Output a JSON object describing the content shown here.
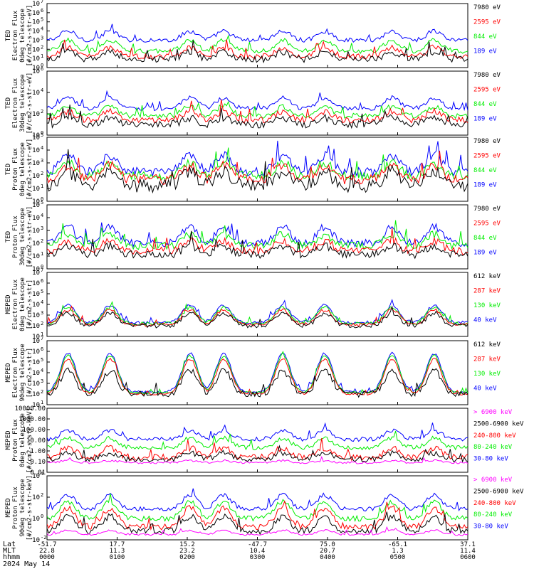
{
  "colors": {
    "black": "#000000",
    "red": "#ff0000",
    "green": "#00ee00",
    "blue": "#0000ff",
    "magenta": "#ff00ff"
  },
  "chart_data": [
    {
      "type": "line",
      "panel_id": "ted-electron-0deg",
      "ylabel": [
        "TED",
        "Electron Flux",
        "0deg telescope",
        "[#/cm2-s-str-eV]"
      ],
      "scale": "log",
      "ylim": [
        1,
        10000000
      ],
      "ytick_exponents": [
        0,
        1,
        2,
        3,
        4,
        5,
        6,
        7
      ],
      "legend": [
        {
          "label": "7980 eV",
          "color": "#000000"
        },
        {
          "label": "2595 eV",
          "color": "#ff0000"
        },
        {
          "label": "844 eV",
          "color": "#00ee00"
        },
        {
          "label": "189 eV",
          "color": "#0000ff"
        }
      ],
      "series": [
        {
          "color": "#0000ff",
          "base": 3.0,
          "amp": 1.0,
          "noise": 0.25
        },
        {
          "color": "#00ee00",
          "base": 1.8,
          "amp": 1.2,
          "noise": 0.25
        },
        {
          "color": "#ff0000",
          "base": 1.2,
          "amp": 1.0,
          "noise": 0.3
        },
        {
          "color": "#000000",
          "base": 0.9,
          "amp": 0.8,
          "noise": 0.35
        }
      ]
    },
    {
      "type": "line",
      "panel_id": "ted-electron-30deg",
      "ylabel": [
        "TED",
        "Electron Flux",
        "30deg telescope",
        "[#/cm2-s-str-eV]"
      ],
      "scale": "log",
      "ylim": [
        1,
        1000000
      ],
      "ytick_exponents": [
        0,
        2,
        4,
        6
      ],
      "legend": [
        {
          "label": "7980 eV",
          "color": "#000000"
        },
        {
          "label": "2595 eV",
          "color": "#ff0000"
        },
        {
          "label": "844 eV",
          "color": "#00ee00"
        },
        {
          "label": "189 eV",
          "color": "#0000ff"
        }
      ],
      "series": [
        {
          "color": "#0000ff",
          "base": 2.5,
          "amp": 1.0,
          "noise": 0.2
        },
        {
          "color": "#00ee00",
          "base": 1.8,
          "amp": 0.9,
          "noise": 0.25
        },
        {
          "color": "#ff0000",
          "base": 1.4,
          "amp": 0.8,
          "noise": 0.3
        },
        {
          "color": "#000000",
          "base": 1.0,
          "amp": 0.6,
          "noise": 0.35
        }
      ]
    },
    {
      "type": "line",
      "panel_id": "ted-proton-0deg",
      "ylabel": [
        "TED",
        "Proton Flux",
        "0deg telescope",
        "[#/cm2-s-str-eV]"
      ],
      "scale": "log",
      "ylim": [
        1,
        100000
      ],
      "ytick_exponents": [
        0,
        1,
        2,
        3,
        4,
        5
      ],
      "legend": [
        {
          "label": "7980 eV",
          "color": "#000000"
        },
        {
          "label": "2595 eV",
          "color": "#ff0000"
        },
        {
          "label": "844 eV",
          "color": "#00ee00"
        },
        {
          "label": "189 eV",
          "color": "#0000ff"
        }
      ],
      "series": [
        {
          "color": "#0000ff",
          "base": 2.3,
          "amp": 1.3,
          "noise": 0.35
        },
        {
          "color": "#00ee00",
          "base": 2.0,
          "amp": 1.0,
          "noise": 0.35
        },
        {
          "color": "#ff0000",
          "base": 1.7,
          "amp": 1.1,
          "noise": 0.4
        },
        {
          "color": "#000000",
          "base": 1.2,
          "amp": 1.1,
          "noise": 0.5
        }
      ]
    },
    {
      "type": "line",
      "panel_id": "ted-proton-30deg",
      "ylabel": [
        "TED",
        "Proton Flux",
        "30deg telescope",
        "[#/cm2-s-str-eV]"
      ],
      "scale": "log",
      "ylim": [
        1,
        100000
      ],
      "ytick_exponents": [
        0,
        1,
        2,
        3,
        4,
        5
      ],
      "legend": [
        {
          "label": "7980 eV",
          "color": "#000000"
        },
        {
          "label": "2595 eV",
          "color": "#ff0000"
        },
        {
          "label": "844 eV",
          "color": "#00ee00"
        },
        {
          "label": "189 eV",
          "color": "#0000ff"
        }
      ],
      "series": [
        {
          "color": "#0000ff",
          "base": 2.0,
          "amp": 1.3,
          "noise": 0.3
        },
        {
          "color": "#00ee00",
          "base": 1.8,
          "amp": 0.9,
          "noise": 0.3
        },
        {
          "color": "#ff0000",
          "base": 1.4,
          "amp": 0.8,
          "noise": 0.3
        },
        {
          "color": "#000000",
          "base": 1.1,
          "amp": 0.7,
          "noise": 0.3
        }
      ]
    },
    {
      "type": "line",
      "panel_id": "meped-electron-0deg",
      "ylabel": [
        "MEPED",
        "Electron Flux",
        "0deg telescope",
        "[#/cm2-s-str]"
      ],
      "scale": "log",
      "ylim": [
        10,
        10000000
      ],
      "ytick_exponents": [
        1,
        2,
        3,
        4,
        5,
        6,
        7
      ],
      "legend": [
        {
          "label": "612 keV",
          "color": "#000000"
        },
        {
          "label": "287 keV",
          "color": "#ff0000"
        },
        {
          "label": "130 keV",
          "color": "#00ee00"
        },
        {
          "label": "40 keV",
          "color": "#0000ff"
        }
      ],
      "series": [
        {
          "color": "#0000ff",
          "base": 2.3,
          "amp": 1.6,
          "noise": 0.15
        },
        {
          "color": "#00ee00",
          "base": 2.2,
          "amp": 1.5,
          "noise": 0.15
        },
        {
          "color": "#ff0000",
          "base": 2.1,
          "amp": 1.4,
          "noise": 0.15
        },
        {
          "color": "#000000",
          "base": 2.0,
          "amp": 1.2,
          "noise": 0.2
        }
      ]
    },
    {
      "type": "line",
      "panel_id": "meped-electron-90deg",
      "ylabel": [
        "MEPED",
        "Electron Flux",
        "90deg telescope",
        "[#/cm2-s-str]"
      ],
      "scale": "log",
      "ylim": [
        10,
        10000000
      ],
      "ytick_exponents": [
        1,
        2,
        3,
        4,
        5,
        6,
        7
      ],
      "legend": [
        {
          "label": "612 keV",
          "color": "#000000"
        },
        {
          "label": "287 keV",
          "color": "#ff0000"
        },
        {
          "label": "130 keV",
          "color": "#00ee00"
        },
        {
          "label": "40 keV",
          "color": "#0000ff"
        }
      ],
      "series": [
        {
          "color": "#0000ff",
          "base": 2.2,
          "amp": 3.6,
          "noise": 0.12
        },
        {
          "color": "#00ee00",
          "base": 2.1,
          "amp": 3.5,
          "noise": 0.12
        },
        {
          "color": "#ff0000",
          "base": 2.0,
          "amp": 3.3,
          "noise": 0.12
        },
        {
          "color": "#000000",
          "base": 2.0,
          "amp": 2.2,
          "noise": 0.3
        }
      ]
    },
    {
      "type": "line",
      "panel_id": "meped-proton-0deg",
      "ylabel": [
        "MEPED",
        "Proton Flux",
        "0deg telescope",
        "[#/cm2-s-str-keV]"
      ],
      "scale": "log",
      "ylim": [
        0.01,
        10000
      ],
      "ytick_labels": [
        "0.01",
        "0.10",
        "1.00",
        "10.00",
        "100.00",
        "1000.00",
        "10000.00"
      ],
      "legend": [
        {
          "label": "> 6900 keV",
          "color": "#ff00ff"
        },
        {
          "label": "2500-6900 keV",
          "color": "#000000"
        },
        {
          "label": "240-800 keV",
          "color": "#ff0000"
        },
        {
          "label": "80-240 keV",
          "color": "#00ee00"
        },
        {
          "label": "30-80 keV",
          "color": "#0000ff"
        }
      ],
      "series": [
        {
          "color": "#0000ff",
          "base": 1.1,
          "amp": 0.8,
          "noise": 0.2
        },
        {
          "color": "#00ee00",
          "base": 0.3,
          "amp": 0.9,
          "noise": 0.2
        },
        {
          "color": "#ff0000",
          "base": -0.6,
          "amp": 0.9,
          "noise": 0.3
        },
        {
          "color": "#000000",
          "base": -0.8,
          "amp": 0.6,
          "noise": 0.25
        },
        {
          "color": "#ff00ff",
          "base": -1.1,
          "amp": 0.2,
          "noise": 0.1
        }
      ]
    },
    {
      "type": "line",
      "panel_id": "meped-proton-90deg",
      "ylabel": [
        "MEPED",
        "Proton Flux",
        "90deg telescope",
        "[#/cm2-s-str-keV]"
      ],
      "scale": "log",
      "ylim": [
        0.01,
        10000
      ],
      "ytick_exponents": [
        -2,
        0,
        2,
        4
      ],
      "legend": [
        {
          "label": "> 6900 keV",
          "color": "#ff00ff"
        },
        {
          "label": "2500-6900 keV",
          "color": "#000000"
        },
        {
          "label": "240-800 keV",
          "color": "#ff0000"
        },
        {
          "label": "80-240 keV",
          "color": "#00ee00"
        },
        {
          "label": "30-80 keV",
          "color": "#0000ff"
        }
      ],
      "series": [
        {
          "color": "#0000ff",
          "base": 0.9,
          "amp": 1.3,
          "noise": 0.2
        },
        {
          "color": "#00ee00",
          "base": 0.0,
          "amp": 1.6,
          "noise": 0.25
        },
        {
          "color": "#ff0000",
          "base": -0.8,
          "amp": 1.8,
          "noise": 0.3
        },
        {
          "color": "#000000",
          "base": -1.2,
          "amp": 1.4,
          "noise": 0.3
        },
        {
          "color": "#ff00ff",
          "base": -1.5,
          "amp": 0.4,
          "noise": 0.1
        }
      ]
    }
  ],
  "xaxis": {
    "row_labels": [
      "Lat",
      "MLT",
      "hhmm",
      "2024 May 14"
    ],
    "ticks": [
      {
        "lat": "-51.7",
        "mlt": "22.8",
        "hhmm": "0000"
      },
      {
        "lat": "17.7",
        "mlt": "11.3",
        "hhmm": "0100"
      },
      {
        "lat": "15.2",
        "mlt": "23.2",
        "hhmm": "0200"
      },
      {
        "lat": "-47.7",
        "mlt": "10.4",
        "hhmm": "0300"
      },
      {
        "lat": "75.0",
        "mlt": "20.7",
        "hhmm": "0400"
      },
      {
        "lat": "-65.1",
        "mlt": "1.3",
        "hhmm": "0500"
      },
      {
        "lat": "37.1",
        "mlt": "11.4",
        "hhmm": "0600"
      }
    ]
  }
}
